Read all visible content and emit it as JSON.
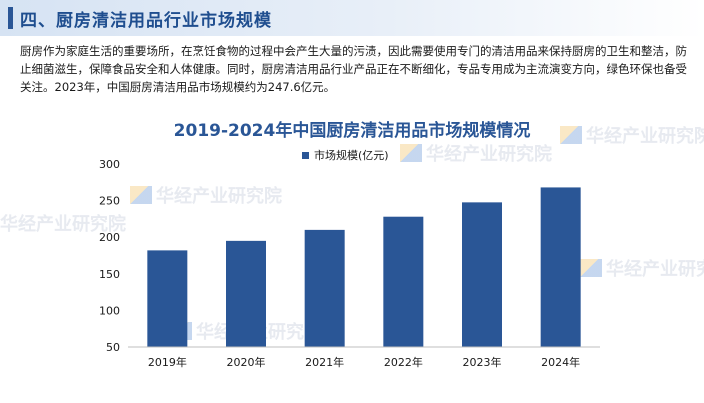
{
  "section": {
    "title": "四、厨房清洁用品行业市场规模"
  },
  "intro": {
    "text": "厨房作为家庭生活的重要场所，在烹饪食物的过程中会产生大量的污渍，因此需要使用专门的清洁用品来保持厨房的卫生和整洁，防止细菌滋生，保障食品安全和人体健康。同时，厨房清洁用品行业产品正在不断细化，专品专用成为主流演变方向，绿色环保也备受关注。2023年，中国厨房清洁用品市场规模约为247.6亿元。"
  },
  "watermark": {
    "text": "华经产业研究院"
  },
  "chart_data": {
    "type": "bar",
    "title": "2019-2024年中国厨房清洁用品市场规模情况",
    "categories": [
      "2019年",
      "2020年",
      "2021年",
      "2022年",
      "2023年",
      "2024年"
    ],
    "series": [
      {
        "name": "市场规模(亿元)",
        "values": [
          182,
          195,
          210,
          228,
          247.6,
          268
        ],
        "color": "#2a5696"
      }
    ],
    "yticks": [
      50,
      100,
      150,
      200,
      250,
      300
    ],
    "ylim": [
      50,
      300
    ],
    "legend_position": "top-center",
    "grid": false
  }
}
